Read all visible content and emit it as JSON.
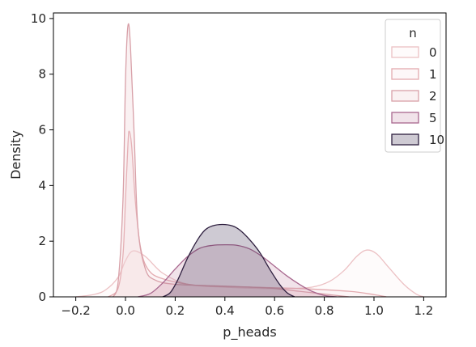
{
  "chart_data": {
    "type": "area",
    "xlabel": "p_heads",
    "ylabel": "Density",
    "xlim": [
      -0.29,
      1.29
    ],
    "ylim": [
      0,
      10.2
    ],
    "x_ticks": [
      -0.2,
      0.0,
      0.2,
      0.4,
      0.6,
      0.8,
      1.0,
      1.2
    ],
    "x_tick_labels": [
      "−0.2",
      "0.0",
      "0.2",
      "0.4",
      "0.6",
      "0.8",
      "1.0",
      "1.2"
    ],
    "y_ticks": [
      0,
      2,
      4,
      6,
      8,
      10
    ],
    "y_tick_labels": [
      "0",
      "2",
      "4",
      "6",
      "8",
      "10"
    ],
    "grid": false,
    "legend": {
      "title": "n",
      "placement": "top-right"
    },
    "series": [
      {
        "name": "0",
        "color": "#ecc1c4",
        "fill": "#fcf0f0",
        "points": [
          [
            -0.2,
            0
          ],
          [
            -0.13,
            0.08
          ],
          [
            -0.08,
            0.25
          ],
          [
            -0.03,
            0.7
          ],
          [
            0.0,
            1.3
          ],
          [
            0.03,
            1.65
          ],
          [
            0.08,
            1.45
          ],
          [
            0.15,
            0.85
          ],
          [
            0.25,
            0.45
          ],
          [
            0.4,
            0.35
          ],
          [
            0.55,
            0.3
          ],
          [
            0.65,
            0.3
          ],
          [
            0.75,
            0.35
          ],
          [
            0.82,
            0.55
          ],
          [
            0.88,
            0.95
          ],
          [
            0.93,
            1.45
          ],
          [
            0.97,
            1.68
          ],
          [
            1.01,
            1.55
          ],
          [
            1.06,
            1.05
          ],
          [
            1.12,
            0.45
          ],
          [
            1.17,
            0.1
          ],
          [
            1.2,
            0
          ]
        ]
      },
      {
        "name": "1",
        "color": "#e3aaaf",
        "fill": "#f8e1e2",
        "points": [
          [
            -0.07,
            0
          ],
          [
            -0.03,
            0.3
          ],
          [
            -0.01,
            1.5
          ],
          [
            0.0,
            3.5
          ],
          [
            0.01,
            5.5
          ],
          [
            0.015,
            5.95
          ],
          [
            0.025,
            5.4
          ],
          [
            0.04,
            3.4
          ],
          [
            0.06,
            1.8
          ],
          [
            0.09,
            1.0
          ],
          [
            0.15,
            0.65
          ],
          [
            0.3,
            0.4
          ],
          [
            0.5,
            0.35
          ],
          [
            0.7,
            0.3
          ],
          [
            0.9,
            0.2
          ],
          [
            1.0,
            0.08
          ],
          [
            1.05,
            0
          ]
        ]
      },
      {
        "name": "2",
        "color": "#d8a0a8",
        "fill": "#ecc6cc",
        "points": [
          [
            -0.05,
            0
          ],
          [
            -0.03,
            0.5
          ],
          [
            -0.01,
            3.5
          ],
          [
            0.0,
            7.8
          ],
          [
            0.01,
            9.75
          ],
          [
            0.02,
            9.0
          ],
          [
            0.035,
            5.8
          ],
          [
            0.05,
            2.5
          ],
          [
            0.08,
            1.0
          ],
          [
            0.12,
            0.6
          ],
          [
            0.2,
            0.45
          ],
          [
            0.35,
            0.4
          ],
          [
            0.5,
            0.35
          ],
          [
            0.6,
            0.3
          ],
          [
            0.7,
            0.2
          ],
          [
            0.8,
            0.1
          ],
          [
            0.9,
            0
          ]
        ]
      },
      {
        "name": "5",
        "color": "#a8678e",
        "fill": "#c68fac",
        "points": [
          [
            0.05,
            0
          ],
          [
            0.1,
            0.12
          ],
          [
            0.15,
            0.5
          ],
          [
            0.2,
            1.0
          ],
          [
            0.25,
            1.45
          ],
          [
            0.3,
            1.75
          ],
          [
            0.35,
            1.85
          ],
          [
            0.4,
            1.87
          ],
          [
            0.45,
            1.85
          ],
          [
            0.5,
            1.72
          ],
          [
            0.55,
            1.45
          ],
          [
            0.6,
            1.1
          ],
          [
            0.65,
            0.75
          ],
          [
            0.7,
            0.45
          ],
          [
            0.75,
            0.2
          ],
          [
            0.8,
            0.05
          ],
          [
            0.85,
            0
          ]
        ]
      },
      {
        "name": "10",
        "color": "#2d1e3e",
        "fill": "#3b2c4e",
        "points": [
          [
            0.15,
            0
          ],
          [
            0.18,
            0.15
          ],
          [
            0.21,
            0.6
          ],
          [
            0.25,
            1.4
          ],
          [
            0.29,
            2.05
          ],
          [
            0.32,
            2.4
          ],
          [
            0.35,
            2.55
          ],
          [
            0.39,
            2.6
          ],
          [
            0.43,
            2.55
          ],
          [
            0.46,
            2.4
          ],
          [
            0.5,
            2.05
          ],
          [
            0.54,
            1.6
          ],
          [
            0.58,
            1.0
          ],
          [
            0.62,
            0.45
          ],
          [
            0.65,
            0.15
          ],
          [
            0.68,
            0
          ]
        ]
      }
    ]
  }
}
